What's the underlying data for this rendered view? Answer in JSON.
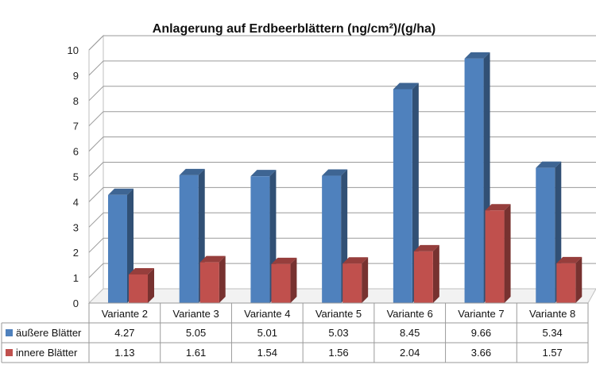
{
  "chart_data": {
    "type": "bar",
    "title": "Anlagerung auf Erdbeerblättern (ng/cm²)/(g/ha)",
    "xlabel": "",
    "ylabel": "",
    "ylim": [
      0,
      10
    ],
    "yticks": [
      "0",
      "1",
      "2",
      "3",
      "4",
      "5",
      "6",
      "7",
      "8",
      "9",
      "10"
    ],
    "grid": true,
    "legend": "table-left",
    "categories": [
      "Variante 2",
      "Variante 3",
      "Variante 4",
      "Variante 5",
      "Variante 6",
      "Variante 7",
      "Variante 8"
    ],
    "series": [
      {
        "name": "äußere Blätter",
        "values": [
          4.27,
          5.05,
          5.01,
          5.03,
          8.45,
          9.66,
          5.34
        ],
        "labels": [
          "4.27",
          "5.05",
          "5.01",
          "5.03",
          "8.45",
          "9.66",
          "5.34"
        ],
        "color": "#4F81BD"
      },
      {
        "name": "innere Blätter",
        "values": [
          1.13,
          1.61,
          1.54,
          1.56,
          2.04,
          3.66,
          1.57
        ],
        "labels": [
          "1.13",
          "1.61",
          "1.54",
          "1.56",
          "2.04",
          "3.66",
          "1.57"
        ],
        "color": "#C0504D"
      }
    ]
  }
}
